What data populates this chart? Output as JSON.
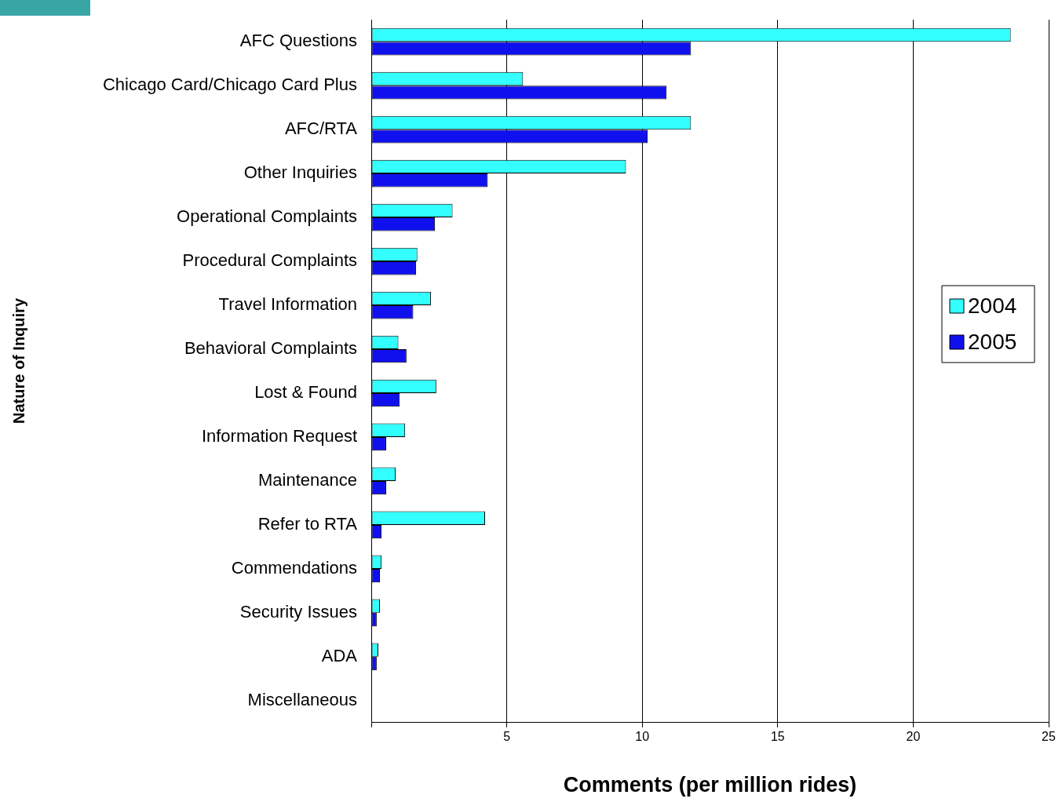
{
  "chart_data": {
    "type": "bar",
    "orientation": "horizontal",
    "xlabel": "Comments (per million rides)",
    "ylabel": "Nature of Inquiry",
    "categories": [
      "AFC Questions",
      "Chicago Card/Chicago Card Plus",
      "AFC/RTA",
      "Other Inquiries",
      "Operational Complaints",
      "Procedural Complaints",
      "Travel Information",
      "Behavioral Complaints",
      "Lost & Found",
      "Information Request",
      "Maintenance",
      "Refer to RTA",
      "Commendations",
      "Security Issues",
      "ADA",
      "Miscellaneous"
    ],
    "series": [
      {
        "name": "2004",
        "color": "#33ffff",
        "values": [
          23.6,
          5.6,
          11.8,
          9.4,
          3.0,
          1.7,
          2.2,
          1.0,
          2.4,
          1.25,
          0.9,
          4.2,
          0.38,
          0.32,
          0.26,
          0
        ]
      },
      {
        "name": "2005",
        "color": "#1010ee",
        "values": [
          11.8,
          10.9,
          10.2,
          4.3,
          2.35,
          1.65,
          1.55,
          1.3,
          1.05,
          0.55,
          0.55,
          0.38,
          0.32,
          0.2,
          0.2,
          0
        ]
      }
    ],
    "xlim": [
      0,
      25
    ],
    "xticks": [
      {
        "value": 0,
        "label": null
      },
      5,
      10,
      15,
      20,
      25
    ],
    "grid": "x",
    "legend": "right"
  }
}
